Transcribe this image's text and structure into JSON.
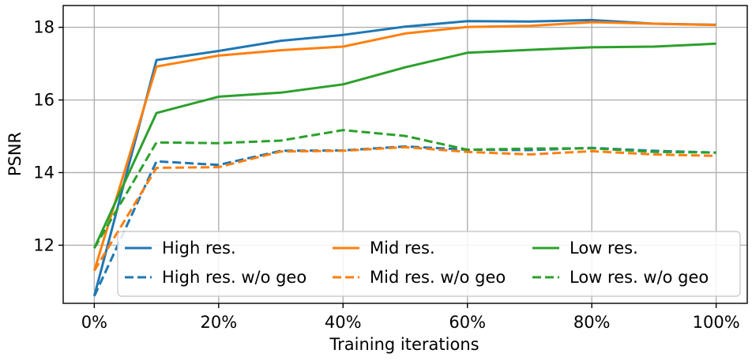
{
  "chart_data": {
    "type": "line",
    "title": "",
    "xlabel": "Training iterations",
    "ylabel": "PSNR",
    "x": [
      0,
      10,
      20,
      30,
      40,
      50,
      60,
      70,
      80,
      90,
      100
    ],
    "xlim": [
      -5,
      105
    ],
    "ylim": [
      10.4,
      18.6
    ],
    "xticks": [
      0,
      20,
      40,
      60,
      80,
      100
    ],
    "xtick_labels": [
      "0%",
      "20%",
      "40%",
      "60%",
      "80%",
      "100%"
    ],
    "yticks": [
      12,
      14,
      16,
      18
    ],
    "ytick_labels": [
      "12",
      "14",
      "16",
      "18"
    ],
    "grid": true,
    "legend_position": "lower-right",
    "series": [
      {
        "name": "High res.",
        "color": "#1f77b4",
        "dash": "solid",
        "values": [
          10.6,
          17.1,
          17.35,
          17.63,
          17.79,
          18.02,
          18.17,
          18.16,
          18.2,
          18.1,
          18.07
        ]
      },
      {
        "name": "Mid res.",
        "color": "#ff7f0e",
        "dash": "solid",
        "values": [
          11.3,
          16.92,
          17.22,
          17.37,
          17.47,
          17.83,
          18.01,
          18.04,
          18.14,
          18.1,
          18.06
        ]
      },
      {
        "name": "Low res.",
        "color": "#2ca02c",
        "dash": "solid",
        "values": [
          11.92,
          15.64,
          16.09,
          16.2,
          16.43,
          16.9,
          17.3,
          17.38,
          17.45,
          17.47,
          17.55
        ]
      },
      {
        "name": "High res. w/o geo",
        "color": "#1f77b4",
        "dash": "dashed",
        "values": [
          10.6,
          14.31,
          14.21,
          14.6,
          14.61,
          14.72,
          14.63,
          14.62,
          14.68,
          14.6,
          14.55
        ]
      },
      {
        "name": "Mid res. w/o geo",
        "color": "#ff7f0e",
        "dash": "dashed",
        "values": [
          11.3,
          14.13,
          14.15,
          14.58,
          14.6,
          14.7,
          14.57,
          14.5,
          14.59,
          14.5,
          14.46
        ]
      },
      {
        "name": "Low res. w/o geo",
        "color": "#2ca02c",
        "dash": "dashed",
        "values": [
          11.92,
          14.83,
          14.81,
          14.88,
          15.17,
          15.01,
          14.63,
          14.66,
          14.67,
          14.57,
          14.55
        ]
      }
    ]
  }
}
